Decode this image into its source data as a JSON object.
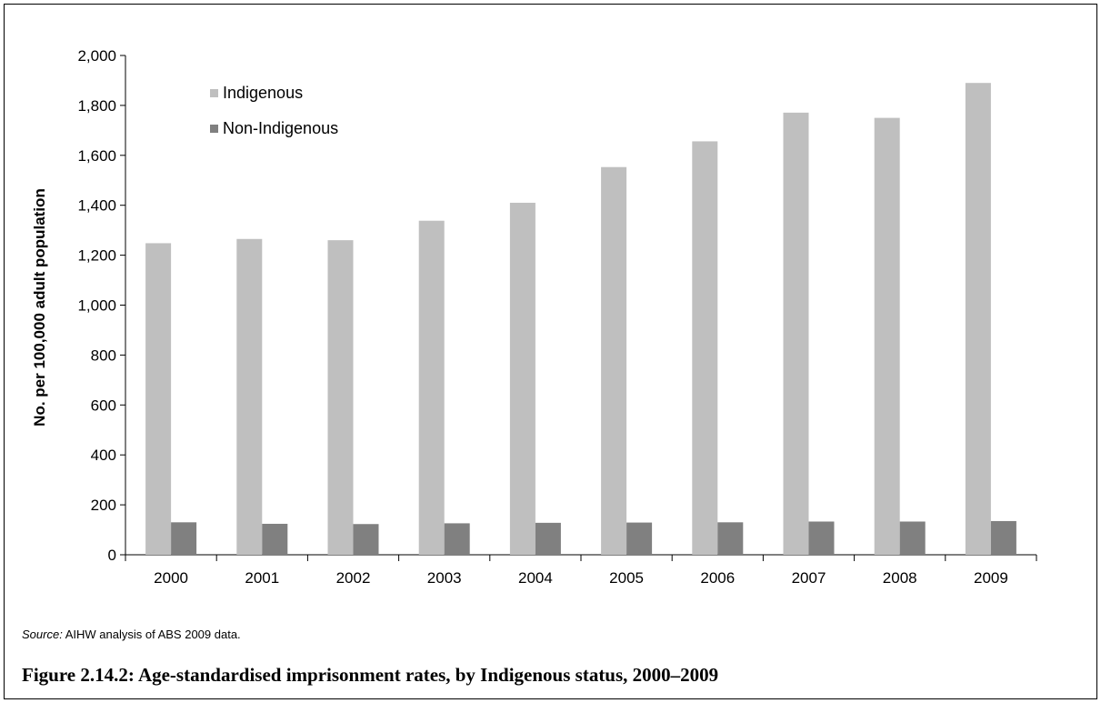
{
  "chart_data": {
    "type": "bar",
    "categories": [
      "2000",
      "2001",
      "2002",
      "2003",
      "2004",
      "2005",
      "2006",
      "2007",
      "2008",
      "2009"
    ],
    "series": [
      {
        "name": "Indigenous",
        "values": [
          1248,
          1265,
          1260,
          1338,
          1410,
          1553,
          1656,
          1771,
          1750,
          1890
        ],
        "color": "#bfbfbf"
      },
      {
        "name": "Non-Indigenous",
        "values": [
          130,
          124,
          123,
          126,
          128,
          129,
          130,
          133,
          133,
          135
        ],
        "color": "#808080"
      }
    ],
    "ylabel": "No. per 100,000 adult population",
    "ylim": [
      0,
      2000
    ],
    "yticks": [
      0,
      200,
      400,
      600,
      800,
      1000,
      1200,
      1400,
      1600,
      1800,
      2000
    ],
    "ytick_labels": [
      "0",
      "200",
      "400",
      "600",
      "800",
      "1,000",
      "1,200",
      "1,400",
      "1,600",
      "1,800",
      "2,000"
    ],
    "grid": false,
    "legend_position": "top-left"
  },
  "source": {
    "label": "Source:",
    "text": "AIHW analysis of ABS 2009 data."
  },
  "caption": "Figure 2.14.2: Age-standardised imprisonment rates, by Indigenous status, 2000–2009"
}
